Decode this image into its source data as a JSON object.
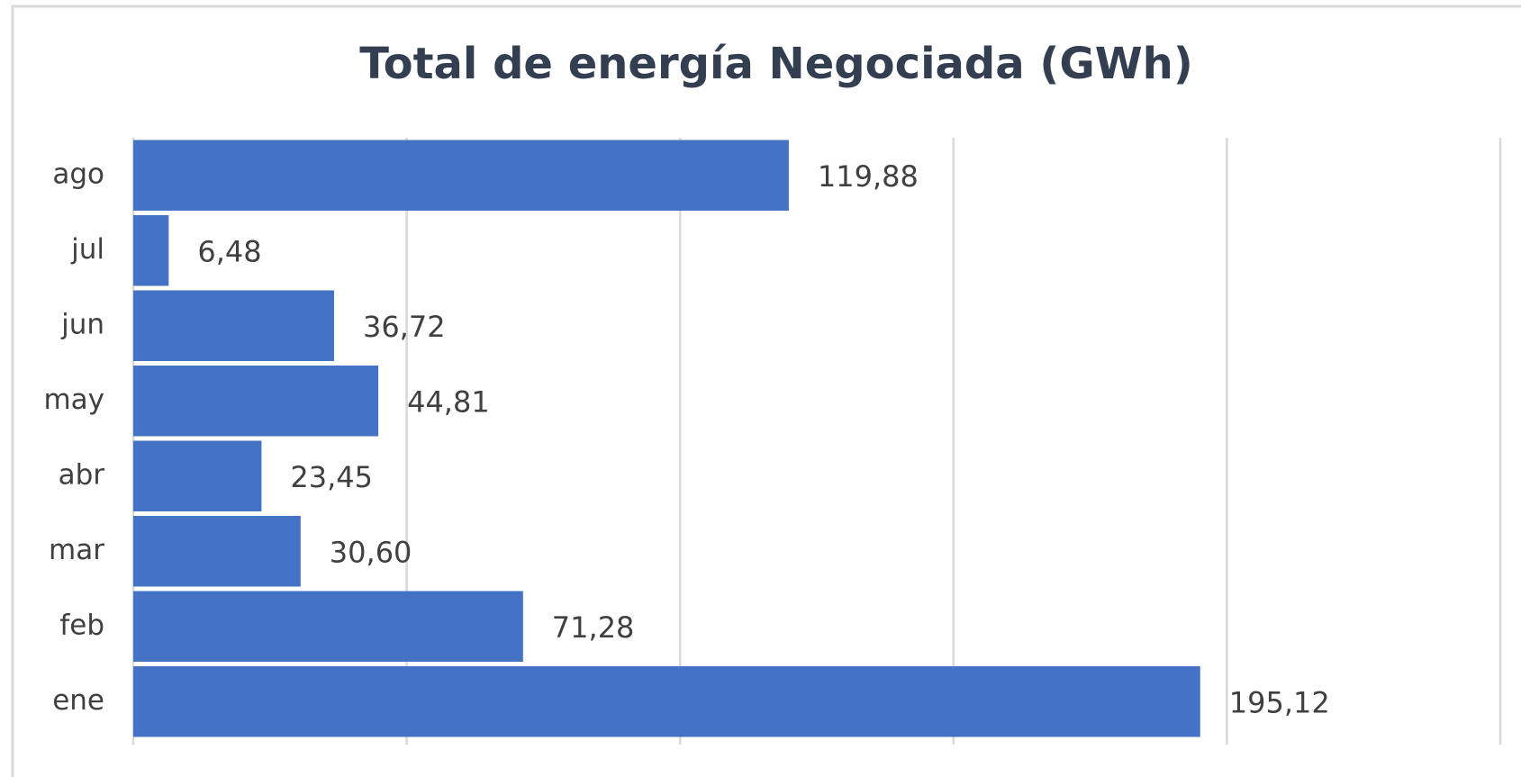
{
  "chart_data": {
    "type": "barh",
    "title": "Total de energía Negociada (GWh)",
    "categories": [
      "ene",
      "feb",
      "mar",
      "abr",
      "may",
      "jun",
      "jul",
      "ago"
    ],
    "values": [
      195.12,
      71.28,
      30.6,
      23.45,
      44.81,
      36.72,
      6.48,
      119.88
    ],
    "value_labels": [
      "195,12",
      "71,28",
      "30,60",
      "23,45",
      "44,81",
      "36,72",
      "6,48",
      "119,88"
    ],
    "color": "#4472c4",
    "xlim": [
      0,
      250
    ],
    "xticks": [
      0,
      50,
      100,
      150,
      200,
      250
    ],
    "grid": true
  }
}
